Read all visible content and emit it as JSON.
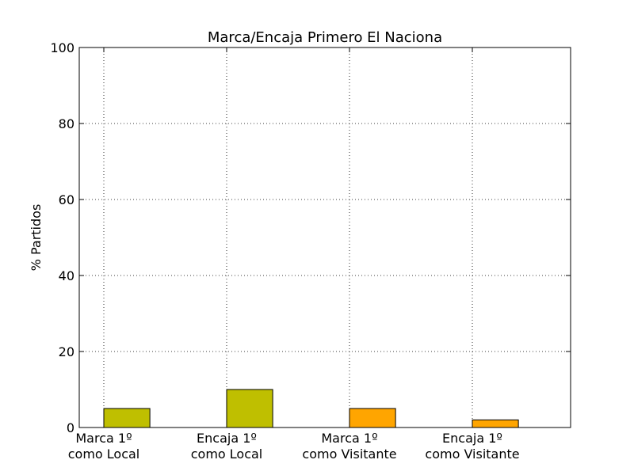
{
  "chart_data": {
    "type": "bar",
    "title": "Marca/Encaja Primero  El Naciona",
    "xlabel": "",
    "ylabel": "% Partidos",
    "ylim": [
      0,
      100
    ],
    "yticks": [
      0,
      20,
      40,
      60,
      80,
      100
    ],
    "grid": true,
    "categories": [
      [
        "Marca 1º",
        "como Local"
      ],
      [
        "Encaja 1º",
        "como Local"
      ],
      [
        "Marca 1º",
        "como Visitante"
      ],
      [
        "Encaja 1º",
        "como Visitante"
      ]
    ],
    "values": [
      5,
      10,
      5,
      2
    ],
    "colors": [
      "#bfbf00",
      "#bfbf00",
      "#ffa500",
      "#ffa500"
    ]
  }
}
